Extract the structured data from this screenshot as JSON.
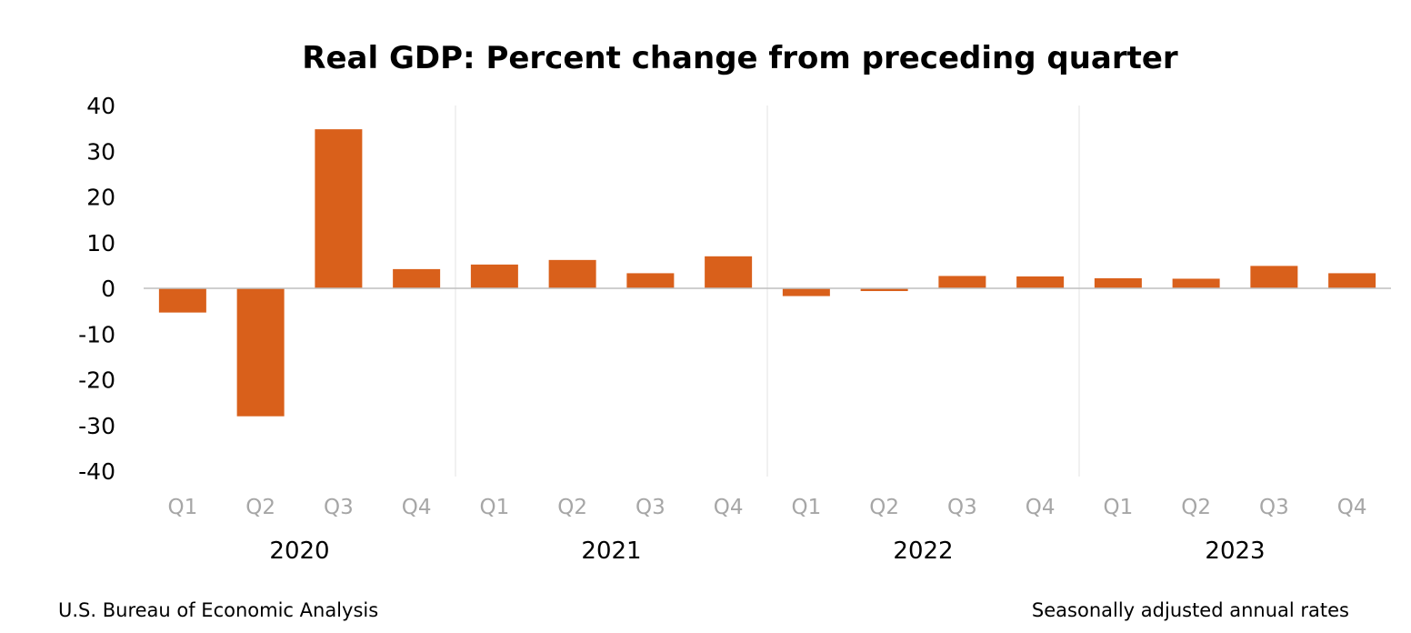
{
  "footer": {
    "source": "U.S. Bureau of Economic Analysis",
    "note": "Seasonally adjusted annual rates"
  },
  "colors": {
    "bar": "#d9601b",
    "quarter_label": "#a6a6a6",
    "separator": "#e3e3e3",
    "zero_line": "#bfbfbf"
  },
  "chart_data": {
    "type": "bar",
    "title": "Real GDP:  Percent change from preceding quarter",
    "xlabel": "",
    "ylabel": "",
    "ylim": [
      -40,
      40
    ],
    "yticks": [
      40,
      30,
      20,
      10,
      0,
      -10,
      -20,
      -30,
      -40
    ],
    "ytick_labels": [
      "40",
      "30",
      "20",
      "10",
      "0",
      "-10",
      "-20",
      "-30",
      "-40"
    ],
    "grid": false,
    "legend": "none",
    "groups": [
      "2020",
      "2021",
      "2022",
      "2023"
    ],
    "categories": [
      "Q1",
      "Q2",
      "Q3",
      "Q4",
      "Q1",
      "Q2",
      "Q3",
      "Q4",
      "Q1",
      "Q2",
      "Q3",
      "Q4",
      "Q1",
      "Q2",
      "Q3",
      "Q4"
    ],
    "values": [
      -5.3,
      -28.0,
      34.8,
      4.2,
      5.2,
      6.2,
      3.3,
      7.0,
      -1.7,
      -0.6,
      2.7,
      2.6,
      2.2,
      2.1,
      4.9,
      3.3
    ]
  }
}
